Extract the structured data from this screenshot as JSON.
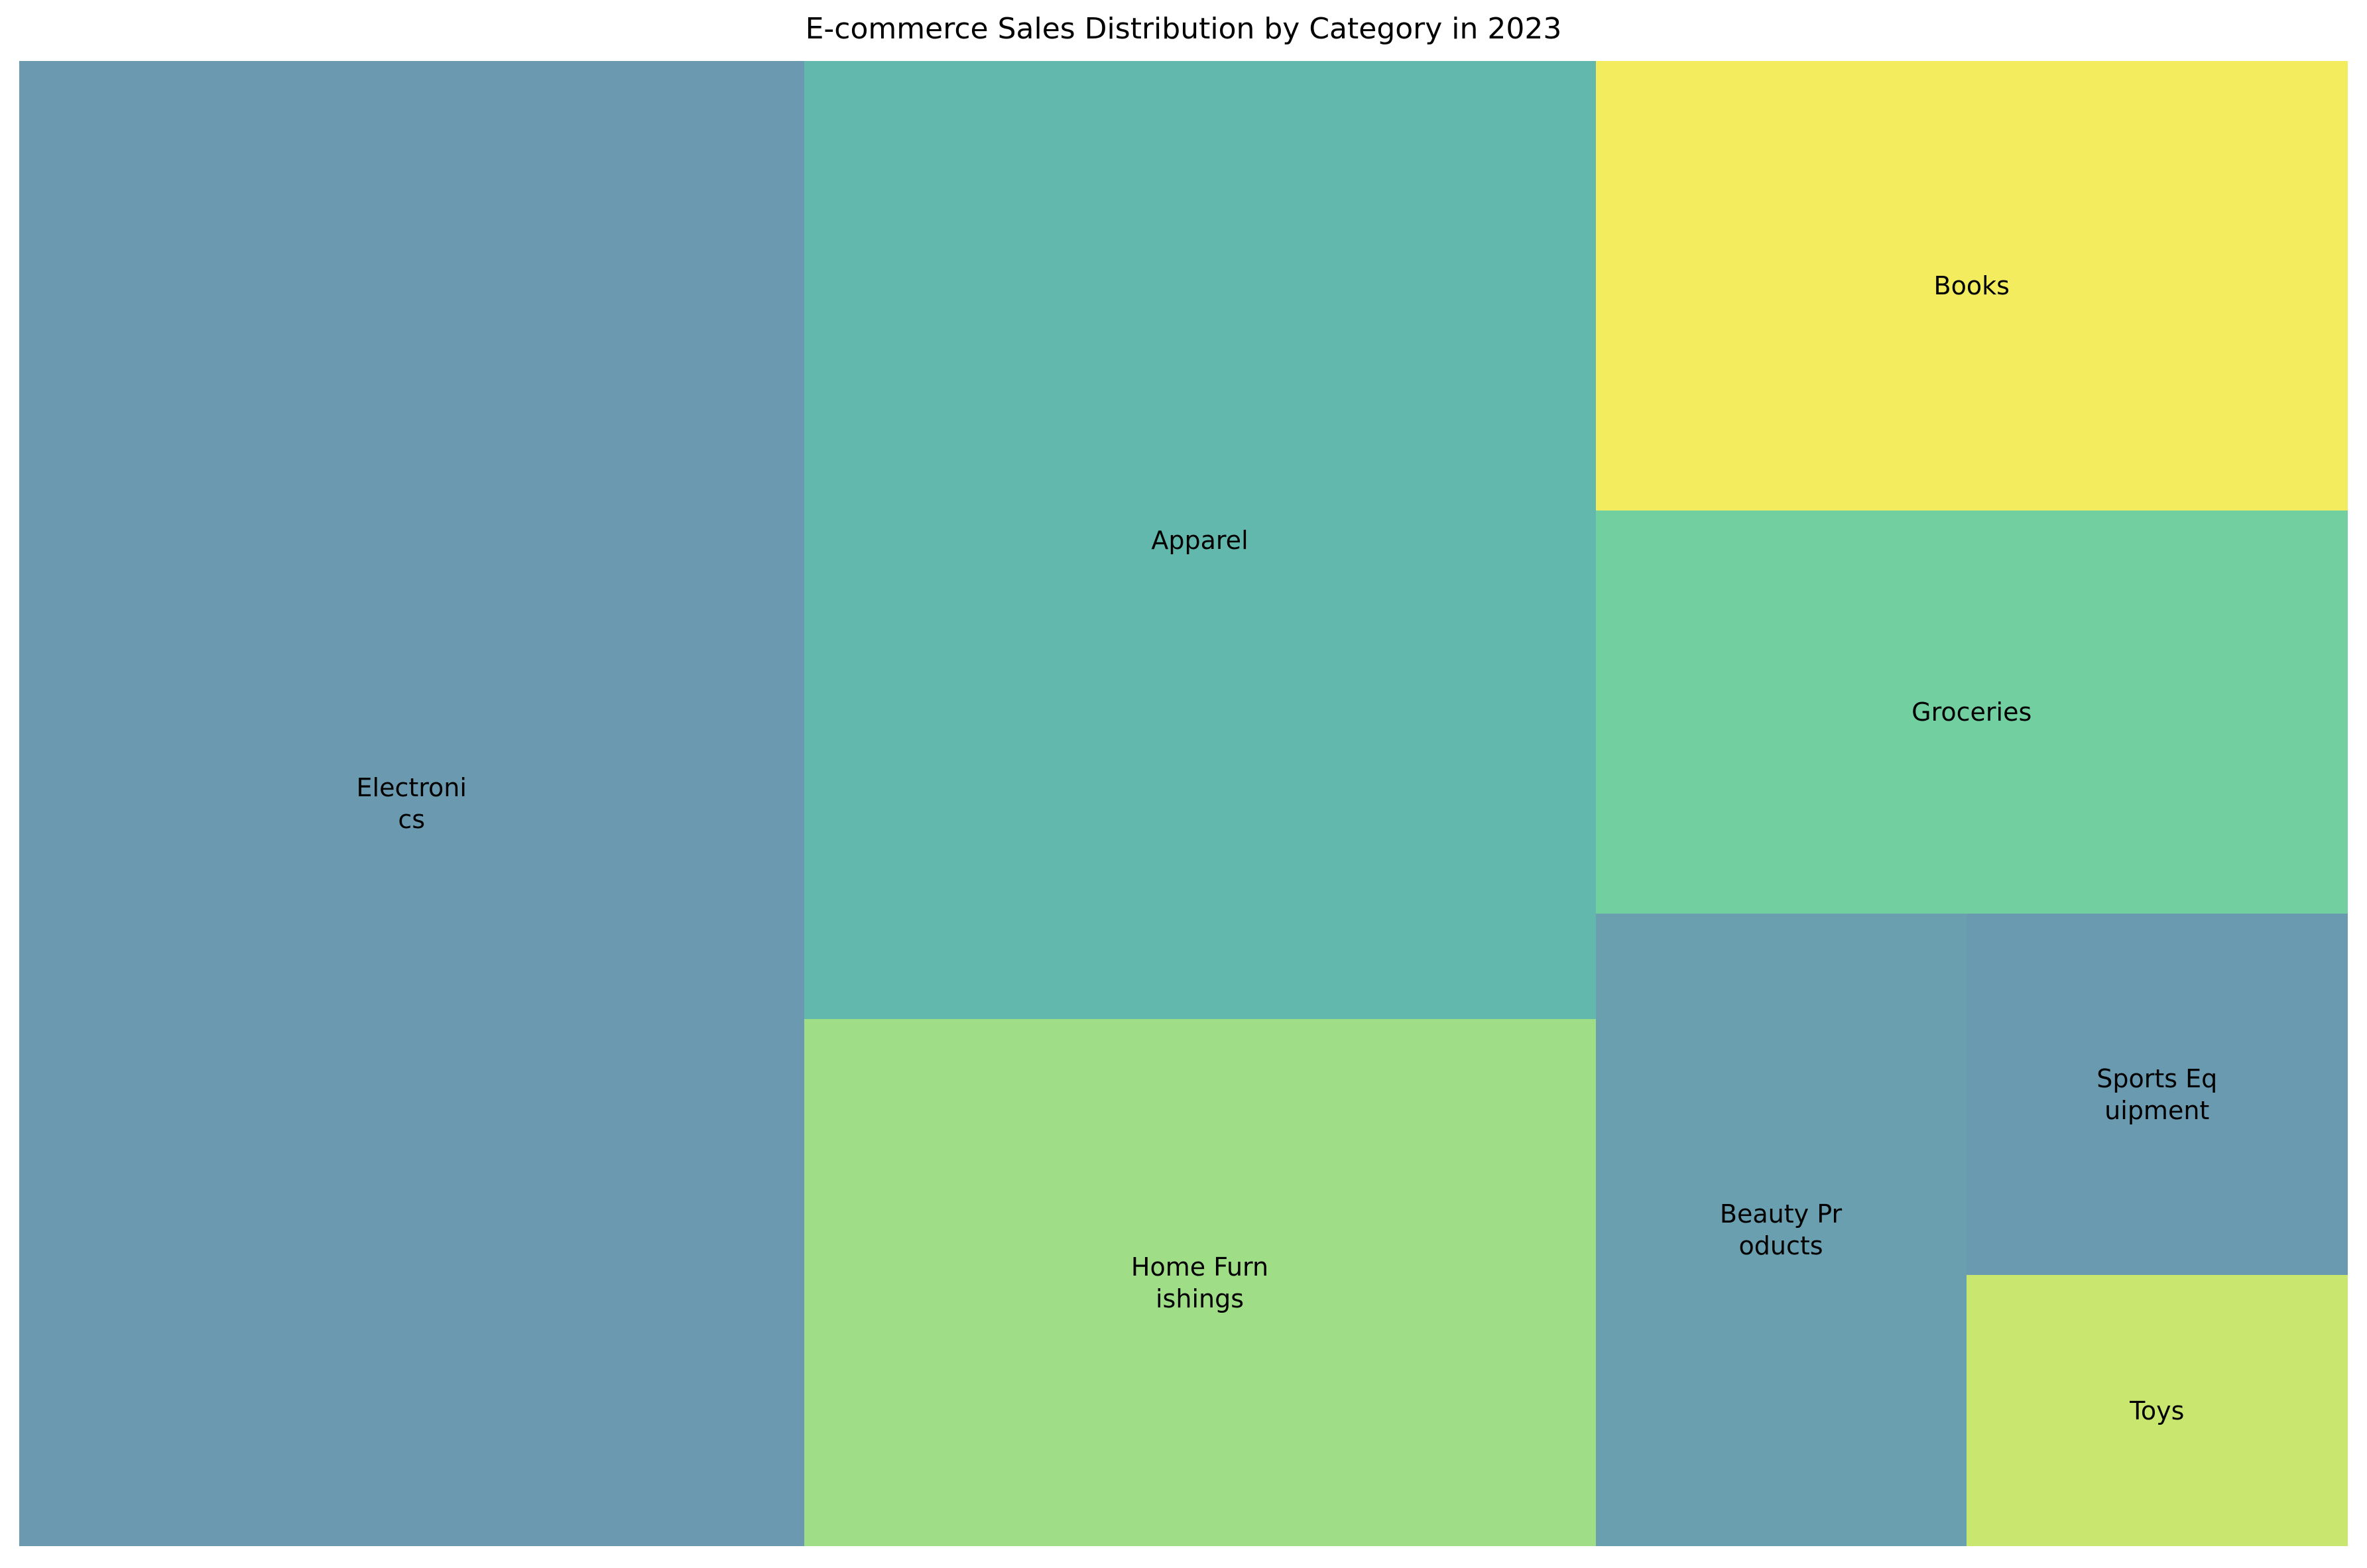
{
  "chart_data": {
    "type": "treemap",
    "title": "E-commerce Sales Distribution by Category in 2023",
    "categories": [
      "Electronics",
      "Apparel",
      "Home Furnishings",
      "Books",
      "Groceries",
      "Beauty Products",
      "Sports Equipment",
      "Toys"
    ],
    "labels": [
      "Electroni\ncs",
      "Apparel",
      "Home Furn\nishings",
      "Books",
      "Groceries",
      "Beauty Pr\noducts",
      "Sports Eq\nuipment",
      "Toys"
    ],
    "values": [
      33.8,
      22.0,
      12.1,
      9.8,
      8.8,
      6.8,
      4.0,
      3.0
    ],
    "colors": [
      "#6b9ab0",
      "#63b8ae",
      "#a0dd87",
      "#f3ec5f",
      "#72cfa0",
      "#6a9fb0",
      "#6a9ab0",
      "#c9e66e"
    ],
    "legend": false,
    "grid": false
  }
}
